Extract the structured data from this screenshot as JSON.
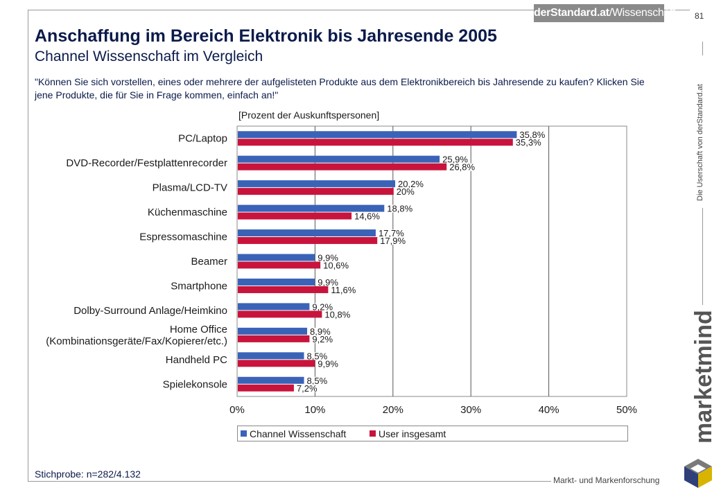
{
  "header": {
    "brand_logo_main": "derStandard.at",
    "brand_logo_sub": "/Wissenschaft",
    "page_number": "81"
  },
  "title": "Anschaffung im Bereich Elektronik bis Jahresende 2005",
  "subtitle": "Channel Wissenschaft im Vergleich",
  "question": "\"Können Sie sich vorstellen, eines oder mehrere der aufgelisteten Produkte aus dem Elektronikbereich bis Jahresende zu kaufen? Klicken Sie jene Produkte, die für Sie in Frage kommen, einfach an!\"",
  "sample": "Stichprobe: n=282/4.132",
  "side": {
    "vertical_note": "Die Userschaft von derStandard.at",
    "brand_name": "marketmind",
    "tagline": "Markt- und Markenforschung"
  },
  "colors": {
    "series_1": "#3a63b8",
    "series_2": "#c8143c",
    "title": "#0a1a4a"
  },
  "chart_data": {
    "type": "bar",
    "orientation": "horizontal",
    "unit_label": "[Prozent der Auskunftspersonen]",
    "categories": [
      [
        "PC/Laptop"
      ],
      [
        "DVD-Recorder/Festplattenrecorder"
      ],
      [
        "Plasma/LCD-TV"
      ],
      [
        "Küchenmaschine"
      ],
      [
        "Espressomaschine"
      ],
      [
        "Beamer"
      ],
      [
        "Smartphone"
      ],
      [
        "Dolby-Surround Anlage/Heimkino"
      ],
      [
        "Home Office",
        "(Kombinationsgeräte/Fax/Kopierer/etc.)"
      ],
      [
        "Handheld PC"
      ],
      [
        "Spielekonsole"
      ]
    ],
    "series": [
      {
        "name": "Channel Wissenschaft",
        "values": [
          35.8,
          25.9,
          20.2,
          18.8,
          17.7,
          9.9,
          9.9,
          9.2,
          8.9,
          8.5,
          8.5
        ],
        "labels": [
          "35,8%",
          "25,9%",
          "20,2%",
          "18,8%",
          "17,7%",
          "9,9%",
          "9,9%",
          "9,2%",
          "8,9%",
          "8,5%",
          "8,5%"
        ]
      },
      {
        "name": "User insgesamt",
        "values": [
          35.3,
          26.8,
          20.0,
          14.6,
          17.9,
          10.6,
          11.6,
          10.8,
          9.2,
          9.9,
          7.2
        ],
        "labels": [
          "35,3%",
          "26,8%",
          "20%",
          "14,6%",
          "17,9%",
          "10,6%",
          "11,6%",
          "10,8%",
          "9,2%",
          "9,9%",
          "7,2%"
        ]
      }
    ],
    "x_ticks": [
      "0%",
      "10%",
      "20%",
      "30%",
      "40%",
      "50%"
    ],
    "xlim": [
      0,
      50
    ],
    "grid": true,
    "legend_position": "bottom"
  }
}
